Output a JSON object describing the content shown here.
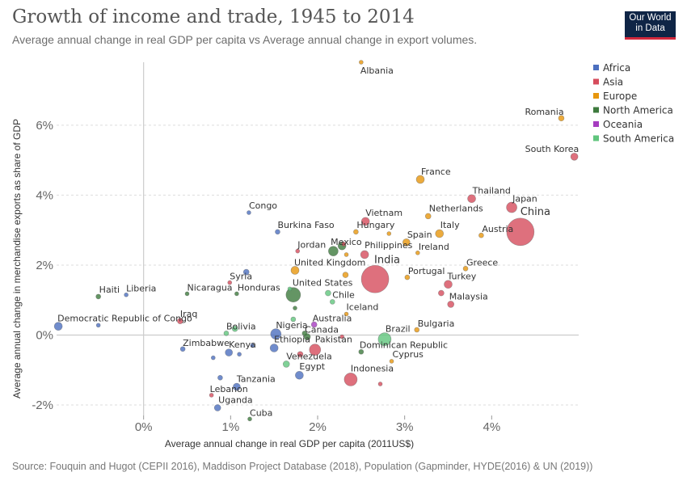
{
  "header": {
    "title": "Growth of income and trade, 1945 to 2014",
    "subtitle": "Average annual change in real GDP per capita vs Average annual change in export volumes.",
    "logo_line1": "Our World",
    "logo_line2": "in Data"
  },
  "footer": {
    "source": "Source: Fouquin and Hugot (CEPII 2016), Maddison Project Database (2018), Population (Gapminder, HYDE(2016) & UN (2019))"
  },
  "chart_data": {
    "type": "scatter",
    "xlabel": "Average annual change in real GDP per capita (2011US$)",
    "ylabel": "Average annual change in merchandise exports as share of GDP",
    "xlim": [
      -1.0,
      5.0
    ],
    "ylim": [
      -2.3,
      7.8
    ],
    "x_ticks": [
      0,
      1,
      2,
      3,
      4
    ],
    "x_tick_labels": [
      "0%",
      "1%",
      "2%",
      "3%",
      "4%"
    ],
    "y_ticks": [
      -2,
      0,
      2,
      4,
      6
    ],
    "y_tick_labels": [
      "-2%",
      "0%",
      "2%",
      "4%",
      "6%"
    ],
    "grid": "horizontal-dashed",
    "legend_position": "right",
    "legend": [
      {
        "name": "Africa",
        "color": "#4c6fbf"
      },
      {
        "name": "Asia",
        "color": "#d64c5c"
      },
      {
        "name": "Europe",
        "color": "#e7960d"
      },
      {
        "name": "North America",
        "color": "#3d7a3d"
      },
      {
        "name": "Oceania",
        "color": "#a63cc0"
      },
      {
        "name": "South America",
        "color": "#60c57d"
      }
    ],
    "points": [
      {
        "label": "Albania",
        "region": "Europe",
        "x": 2.5,
        "y": 7.8,
        "size": 2.5
      },
      {
        "label": "Romania",
        "region": "Europe",
        "x": 4.8,
        "y": 6.2,
        "size": 3.5
      },
      {
        "label": "South Korea",
        "region": "Asia",
        "x": 4.95,
        "y": 5.1,
        "size": 4.5
      },
      {
        "label": "France",
        "region": "Europe",
        "x": 3.18,
        "y": 4.45,
        "size": 5
      },
      {
        "label": "Thailand",
        "region": "Asia",
        "x": 3.77,
        "y": 3.9,
        "size": 5
      },
      {
        "label": "Japan",
        "region": "Asia",
        "x": 4.23,
        "y": 3.65,
        "size": 6.5
      },
      {
        "label": "China",
        "region": "Asia",
        "x": 4.33,
        "y": 2.95,
        "size": 17
      },
      {
        "label": "Netherlands",
        "region": "Europe",
        "x": 3.27,
        "y": 3.4,
        "size": 3.5
      },
      {
        "label": "Austria",
        "region": "Europe",
        "x": 3.88,
        "y": 2.85,
        "size": 3
      },
      {
        "label": "Italy",
        "region": "Europe",
        "x": 3.4,
        "y": 2.9,
        "size": 5
      },
      {
        "label": "Spain",
        "region": "Europe",
        "x": 3.02,
        "y": 2.65,
        "size": 4.5
      },
      {
        "label": "Ireland",
        "region": "Europe",
        "x": 3.15,
        "y": 2.35,
        "size": 2.5
      },
      {
        "label": "Vietnam",
        "region": "Asia",
        "x": 2.55,
        "y": 3.25,
        "size": 5
      },
      {
        "label": "Hungary",
        "region": "Europe",
        "x": 2.44,
        "y": 2.95,
        "size": 3
      },
      {
        "label": "Congo",
        "region": "Africa",
        "x": 1.21,
        "y": 3.5,
        "size": 2.5
      },
      {
        "label": "Burkina Faso",
        "region": "Africa",
        "x": 1.54,
        "y": 2.95,
        "size": 3
      },
      {
        "label": "Mexico",
        "region": "North America",
        "x": 2.28,
        "y": 2.55,
        "size": 5
      },
      {
        "label": "Jordan",
        "region": "Asia",
        "x": 1.77,
        "y": 2.4,
        "size": 2.5
      },
      {
        "label": "Philippines",
        "region": "Asia",
        "x": 2.54,
        "y": 2.3,
        "size": 5
      },
      {
        "label": "India",
        "region": "Asia",
        "x": 2.66,
        "y": 1.6,
        "size": 17
      },
      {
        "label": "United Kingdom",
        "region": "Europe",
        "x": 1.74,
        "y": 1.85,
        "size": 5
      },
      {
        "label": "Portugal",
        "region": "Europe",
        "x": 3.03,
        "y": 1.65,
        "size": 3
      },
      {
        "label": "Greece",
        "region": "Europe",
        "x": 3.7,
        "y": 1.9,
        "size": 3
      },
      {
        "label": "Turkey",
        "region": "Asia",
        "x": 3.5,
        "y": 1.45,
        "size": 5
      },
      {
        "label": "Malaysia",
        "region": "Asia",
        "x": 3.53,
        "y": 0.88,
        "size": 4
      },
      {
        "label": "Syria",
        "region": "Asia",
        "x": 0.99,
        "y": 1.5,
        "size": 2.5
      },
      {
        "label": "Haiti",
        "region": "North America",
        "x": -0.52,
        "y": 1.1,
        "size": 3
      },
      {
        "label": "Liberia",
        "region": "Africa",
        "x": -0.2,
        "y": 1.15,
        "size": 2.5
      },
      {
        "label": "Nicaragua",
        "region": "North America",
        "x": 0.5,
        "y": 1.18,
        "size": 2.5
      },
      {
        "label": "Honduras",
        "region": "North America",
        "x": 1.07,
        "y": 1.18,
        "size": 2.5
      },
      {
        "label": "United States",
        "region": "North America",
        "x": 1.72,
        "y": 1.15,
        "size": 9
      },
      {
        "label": "Chile",
        "region": "South America",
        "x": 2.17,
        "y": 0.95,
        "size": 3
      },
      {
        "label": "Iceland",
        "region": "Europe",
        "x": 2.33,
        "y": 0.6,
        "size": 2.5
      },
      {
        "label": "Democratic Republic of Congo",
        "region": "Africa",
        "x": -0.98,
        "y": 0.25,
        "size": 5
      },
      {
        "label": "Iraq",
        "region": "Asia",
        "x": 0.42,
        "y": 0.4,
        "size": 3.5
      },
      {
        "label": "Bulgaria",
        "region": "Europe",
        "x": 3.14,
        "y": 0.15,
        "size": 3
      },
      {
        "label": "Australia",
        "region": "Oceania",
        "x": 1.96,
        "y": 0.3,
        "size": 3.5
      },
      {
        "label": "Bolivia",
        "region": "South America",
        "x": 0.95,
        "y": 0.05,
        "size": 3
      },
      {
        "label": "Nigeria",
        "region": "Africa",
        "x": 1.52,
        "y": 0.03,
        "size": 6.5
      },
      {
        "label": "Canada",
        "region": "North America",
        "x": 1.88,
        "y": -0.05,
        "size": 4
      },
      {
        "label": "Brazil",
        "region": "South America",
        "x": 2.77,
        "y": -0.12,
        "size": 8
      },
      {
        "label": "Zimbabwe",
        "region": "Africa",
        "x": 0.45,
        "y": -0.4,
        "size": 3
      },
      {
        "label": "Kenya",
        "region": "Africa",
        "x": 0.98,
        "y": -0.5,
        "size": 4.5
      },
      {
        "label": "Ethiopia",
        "region": "Africa",
        "x": 1.5,
        "y": -0.37,
        "size": 5
      },
      {
        "label": "Pakistan",
        "region": "Asia",
        "x": 1.97,
        "y": -0.42,
        "size": 7
      },
      {
        "label": "Dominican Republic",
        "region": "North America",
        "x": 2.5,
        "y": -0.48,
        "size": 3
      },
      {
        "label": "Cyprus",
        "region": "Europe",
        "x": 2.85,
        "y": -0.75,
        "size": 2.5
      },
      {
        "label": "Venezuela",
        "region": "South America",
        "x": 1.64,
        "y": -0.83,
        "size": 4
      },
      {
        "label": "Egypt",
        "region": "Africa",
        "x": 1.79,
        "y": -1.15,
        "size": 5
      },
      {
        "label": "Indonesia",
        "region": "Asia",
        "x": 2.38,
        "y": -1.27,
        "size": 8
      },
      {
        "label": "Tanzania",
        "region": "Africa",
        "x": 1.07,
        "y": -1.48,
        "size": 4.5
      },
      {
        "label": "Lebanon",
        "region": "Asia",
        "x": 0.78,
        "y": -1.72,
        "size": 2.5
      },
      {
        "label": "Uganda",
        "region": "Africa",
        "x": 0.85,
        "y": -2.08,
        "size": 4
      },
      {
        "label": "Cuba",
        "region": "North America",
        "x": 1.22,
        "y": -2.4,
        "size": 2.5
      }
    ],
    "annotations": [
      {
        "text": "Albania",
        "x": 2.5,
        "y": 7.8,
        "dx": -1,
        "dy": 14,
        "size": 11
      },
      {
        "text": "Romania",
        "x": 4.8,
        "y": 6.2,
        "dx": -45,
        "dy": -4,
        "size": 11
      },
      {
        "text": "South Korea",
        "x": 4.95,
        "y": 5.1,
        "dx": -61,
        "dy": -6,
        "size": 11
      },
      {
        "text": "France",
        "x": 3.18,
        "y": 4.45,
        "dx": 1,
        "dy": -6,
        "size": 11
      },
      {
        "text": "Thailand",
        "x": 3.77,
        "y": 3.9,
        "dx": 1,
        "dy": -6,
        "size": 11
      },
      {
        "text": "Japan",
        "x": 4.23,
        "y": 3.65,
        "dx": 1,
        "dy": -7,
        "size": 11
      },
      {
        "text": "China",
        "x": 4.33,
        "y": 2.95,
        "dx": 0,
        "dy": -21,
        "size": 13
      },
      {
        "text": "Netherlands",
        "x": 3.27,
        "y": 3.4,
        "dx": 1,
        "dy": -6,
        "size": 11
      },
      {
        "text": "Austria",
        "x": 3.88,
        "y": 2.85,
        "dx": 1,
        "dy": -4,
        "size": 11
      },
      {
        "text": "Italy",
        "x": 3.4,
        "y": 2.9,
        "dx": 1,
        "dy": -7,
        "size": 11
      },
      {
        "text": "Spain",
        "x": 3.02,
        "y": 2.65,
        "dx": 1,
        "dy": -6,
        "size": 11
      },
      {
        "text": "Ireland",
        "x": 3.15,
        "y": 2.35,
        "dx": 1,
        "dy": -4,
        "size": 11
      },
      {
        "text": "Vietnam",
        "x": 2.55,
        "y": 3.25,
        "dx": 0,
        "dy": -7,
        "size": 11
      },
      {
        "text": "Hungary",
        "x": 2.44,
        "y": 2.95,
        "dx": 1,
        "dy": -5,
        "size": 11
      },
      {
        "text": "Congo",
        "x": 1.21,
        "y": 3.5,
        "dx": 0,
        "dy": -5,
        "size": 11
      },
      {
        "text": "Burkina Faso",
        "x": 1.54,
        "y": 2.95,
        "dx": 0,
        "dy": -5,
        "size": 11
      },
      {
        "text": "Mexico",
        "x": 2.28,
        "y": 2.55,
        "dx": -14,
        "dy": -1,
        "size": 11
      },
      {
        "text": "Jordan",
        "x": 1.77,
        "y": 2.4,
        "dx": 0,
        "dy": -4,
        "size": 11
      },
      {
        "text": "Philippines",
        "x": 2.54,
        "y": 2.3,
        "dx": 0,
        "dy": -8,
        "size": 11
      },
      {
        "text": "India",
        "x": 2.66,
        "y": 1.6,
        "dx": -1,
        "dy": -20,
        "size": 13
      },
      {
        "text": "United Kingdom",
        "x": 1.74,
        "y": 1.85,
        "dx": -1,
        "dy": -6,
        "size": 11
      },
      {
        "text": "Portugal",
        "x": 3.03,
        "y": 1.65,
        "dx": 1,
        "dy": -4,
        "size": 11
      },
      {
        "text": "Greece",
        "x": 3.7,
        "y": 1.9,
        "dx": 1,
        "dy": -4,
        "size": 11
      },
      {
        "text": "Turkey",
        "x": 3.5,
        "y": 1.45,
        "dx": -1,
        "dy": -6,
        "size": 11
      },
      {
        "text": "Malaysia",
        "x": 3.53,
        "y": 0.88,
        "dx": -2,
        "dy": -6,
        "size": 11
      },
      {
        "text": "Syria",
        "x": 0.99,
        "y": 1.5,
        "dx": 0,
        "dy": -4,
        "size": 11
      },
      {
        "text": "Haiti",
        "x": -0.52,
        "y": 1.1,
        "dx": 1,
        "dy": -5,
        "size": 11
      },
      {
        "text": "Liberia",
        "x": -0.2,
        "y": 1.15,
        "dx": 0,
        "dy": -4,
        "size": 11
      },
      {
        "text": "Nicaragua",
        "x": 0.5,
        "y": 1.18,
        "dx": 0,
        "dy": -4,
        "size": 11
      },
      {
        "text": "Honduras",
        "x": 1.07,
        "y": 1.18,
        "dx": 1,
        "dy": -4,
        "size": 11
      },
      {
        "text": "United States",
        "x": 1.72,
        "y": 1.15,
        "dx": -1,
        "dy": -11,
        "size": 11
      },
      {
        "text": "Chile",
        "x": 2.17,
        "y": 0.95,
        "dx": 0,
        "dy": -5,
        "size": 11
      },
      {
        "text": "Iceland",
        "x": 2.33,
        "y": 0.6,
        "dx": 0,
        "dy": -5,
        "size": 11
      },
      {
        "text": "Democratic Republic of Congo",
        "x": -0.98,
        "y": 0.25,
        "dx": -1,
        "dy": -6,
        "size": 11
      },
      {
        "text": "Iraq",
        "x": 0.42,
        "y": 0.4,
        "dx": 0,
        "dy": -5,
        "size": 11
      },
      {
        "text": "Bulgaria",
        "x": 3.14,
        "y": 0.15,
        "dx": 1,
        "dy": -4,
        "size": 11
      },
      {
        "text": "Australia",
        "x": 1.96,
        "y": 0.3,
        "dx": -2,
        "dy": -4,
        "size": 11
      },
      {
        "text": "Bolivia",
        "x": 0.95,
        "y": 0.05,
        "dx": 0,
        "dy": -5,
        "size": 11
      },
      {
        "text": "Nigeria",
        "x": 1.52,
        "y": 0.03,
        "dx": 0,
        "dy": -7,
        "size": 11
      },
      {
        "text": "Canada",
        "x": 1.88,
        "y": -0.05,
        "dx": -3,
        "dy": -5,
        "size": 11
      },
      {
        "text": "Brazil",
        "x": 2.77,
        "y": -0.12,
        "dx": 1,
        "dy": -9,
        "size": 11
      },
      {
        "text": "Zimbabwe",
        "x": 0.45,
        "y": -0.4,
        "dx": 0,
        "dy": -4,
        "size": 11
      },
      {
        "text": "Kenya",
        "x": 0.98,
        "y": -0.5,
        "dx": 0,
        "dy": -6,
        "size": 11
      },
      {
        "text": "Ethiopia",
        "x": 1.5,
        "y": -0.37,
        "dx": 0,
        "dy": -7,
        "size": 11
      },
      {
        "text": "Pakistan",
        "x": 1.97,
        "y": -0.42,
        "dx": 0,
        "dy": -9,
        "size": 11
      },
      {
        "text": "Dominican Republic",
        "x": 2.5,
        "y": -0.48,
        "dx": -2,
        "dy": -5,
        "size": 11
      },
      {
        "text": "Cyprus",
        "x": 2.85,
        "y": -0.75,
        "dx": 1,
        "dy": -5,
        "size": 11
      },
      {
        "text": "Venezuela",
        "x": 1.64,
        "y": -0.83,
        "dx": 0,
        "dy": -6,
        "size": 11
      },
      {
        "text": "Egypt",
        "x": 1.79,
        "y": -1.15,
        "dx": 0,
        "dy": -7,
        "size": 11
      },
      {
        "text": "Indonesia",
        "x": 2.38,
        "y": -1.27,
        "dx": 0,
        "dy": -10,
        "size": 11
      },
      {
        "text": "Tanzania",
        "x": 1.07,
        "y": -1.48,
        "dx": 0,
        "dy": -6,
        "size": 11
      },
      {
        "text": "Lebanon",
        "x": 0.78,
        "y": -1.72,
        "dx": -2,
        "dy": -4,
        "size": 11
      },
      {
        "text": "Uganda",
        "x": 0.85,
        "y": -2.08,
        "dx": 1,
        "dy": -6,
        "size": 11
      },
      {
        "text": "Cuba",
        "x": 1.22,
        "y": -2.4,
        "dx": 0,
        "dy": -4,
        "size": 11
      }
    ],
    "minor_points": [
      {
        "region": "Africa",
        "x": 1.18,
        "y": 1.8,
        "size": 3.5
      },
      {
        "region": "Africa",
        "x": -0.52,
        "y": 0.28,
        "size": 2.5
      },
      {
        "region": "Africa",
        "x": 0.8,
        "y": -0.65,
        "size": 2.5
      },
      {
        "region": "Africa",
        "x": 1.1,
        "y": -0.55,
        "size": 2.5
      },
      {
        "region": "Africa",
        "x": 1.25,
        "y": -0.3,
        "size": 2.5
      },
      {
        "region": "Africa",
        "x": 0.88,
        "y": -1.22,
        "size": 3
      },
      {
        "region": "Asia",
        "x": 1.8,
        "y": -0.55,
        "size": 3.5
      },
      {
        "region": "Asia",
        "x": 2.28,
        "y": -0.05,
        "size": 2.5
      },
      {
        "region": "Asia",
        "x": 2.72,
        "y": -1.4,
        "size": 2.5
      },
      {
        "region": "Asia",
        "x": 3.42,
        "y": 1.2,
        "size": 3.5
      },
      {
        "region": "Asia",
        "x": 2.3,
        "y": 2.6,
        "size": 2.5
      },
      {
        "region": "Europe",
        "x": 2.33,
        "y": 2.3,
        "size": 2.5
      },
      {
        "region": "Europe",
        "x": 2.32,
        "y": 1.72,
        "size": 3.5
      },
      {
        "region": "Europe",
        "x": 2.82,
        "y": 2.9,
        "size": 2.5
      },
      {
        "region": "North America",
        "x": 2.18,
        "y": 2.4,
        "size": 6
      },
      {
        "region": "North America",
        "x": 1.74,
        "y": 0.77,
        "size": 2.5
      },
      {
        "region": "North America",
        "x": 1.85,
        "y": 0.05,
        "size": 3
      },
      {
        "region": "South America",
        "x": 2.12,
        "y": 1.2,
        "size": 3.5
      },
      {
        "region": "South America",
        "x": 1.72,
        "y": 0.45,
        "size": 3
      },
      {
        "region": "South America",
        "x": 1.05,
        "y": 0.18,
        "size": 3.5
      },
      {
        "region": "South America",
        "x": 1.68,
        "y": 1.32,
        "size": 2.5
      }
    ]
  }
}
